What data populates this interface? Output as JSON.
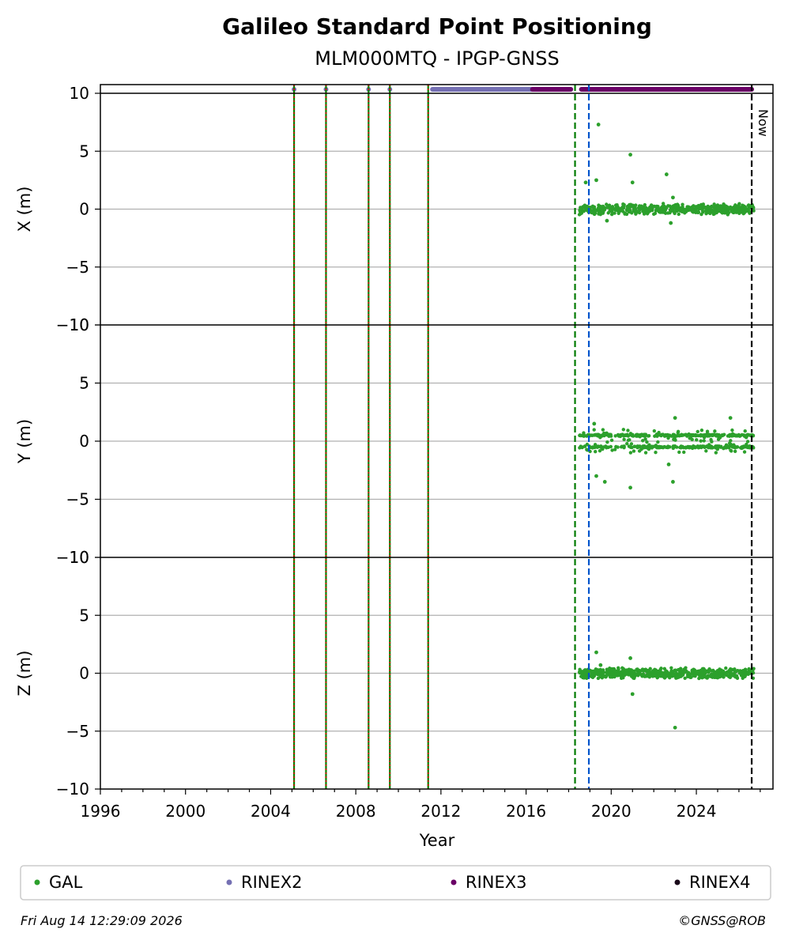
{
  "chart_data": {
    "type": "scatter",
    "title": "Galileo Standard Point Positioning",
    "subtitle": "MLM000MTQ - IPGP-GNSS",
    "xlabel": "Year",
    "xlim": [
      1996,
      2027.6
    ],
    "x_ticks": [
      "1996",
      "2000",
      "2004",
      "2008",
      "2012",
      "2016",
      "2020",
      "2024"
    ],
    "grid": true,
    "panels": [
      {
        "ylabel": "X (m)",
        "ylim": [
          -10,
          10
        ],
        "y_ticks": [
          "10",
          "5",
          "0",
          "−5",
          "−10"
        ]
      },
      {
        "ylabel": "Y (m)",
        "ylim": [
          -10,
          10
        ],
        "y_ticks": [
          "10",
          "5",
          "0",
          "−5",
          "−10"
        ]
      },
      {
        "ylabel": "Z (m)",
        "ylim": [
          -10,
          10
        ],
        "y_ticks": [
          "10",
          "5",
          "0",
          "−5",
          "−10"
        ]
      }
    ],
    "series": [
      {
        "name": "GAL",
        "color": "#2ca02c",
        "x_range": [
          2018.5,
          2026.7
        ],
        "outliers": {
          "X": [
            [
              2018.8,
              2.3
            ],
            [
              2019.3,
              2.5
            ],
            [
              2019.4,
              7.3
            ],
            [
              2020.9,
              4.7
            ],
            [
              2021.0,
              2.3
            ],
            [
              2022.6,
              3.0
            ],
            [
              2022.9,
              1.0
            ],
            [
              2019.8,
              -1.0
            ],
            [
              2022.8,
              -1.2
            ]
          ],
          "Y": [
            [
              2019.3,
              -3.0
            ],
            [
              2019.7,
              -3.5
            ],
            [
              2020.9,
              -4.0
            ],
            [
              2022.7,
              -2.0
            ],
            [
              2022.9,
              -3.5
            ],
            [
              2023.0,
              2.0
            ],
            [
              2025.6,
              2.0
            ],
            [
              2019.2,
              1.5
            ]
          ],
          "Z": [
            [
              2019.3,
              1.8
            ],
            [
              2020.9,
              1.3
            ],
            [
              2021.0,
              -1.8
            ],
            [
              2023.0,
              -4.7
            ],
            [
              2019.5,
              0.7
            ]
          ]
        }
      },
      {
        "name": "RINEX2",
        "color": "#7570b3",
        "segments": [
          [
            2011.6,
            2018.1
          ]
        ],
        "points": [
          2005.1,
          2006.6,
          2008.6,
          2009.6
        ]
      },
      {
        "name": "RINEX3",
        "color": "#6a0066",
        "segments": [
          [
            2016.3,
            2018.1
          ],
          [
            2018.6,
            2026.6
          ]
        ]
      },
      {
        "name": "RINEX4",
        "color": "#1a0a1a",
        "segments": []
      }
    ],
    "vertical_lines": [
      {
        "x": 2005.1,
        "style": "green-red-dotted"
      },
      {
        "x": 2006.6,
        "style": "green-red-dotted"
      },
      {
        "x": 2008.6,
        "style": "green-red-dotted"
      },
      {
        "x": 2009.6,
        "style": "green-red-dotted"
      },
      {
        "x": 2011.4,
        "style": "green-red-dotted"
      },
      {
        "x": 2018.3,
        "style": "green-dashed"
      },
      {
        "x": 2018.95,
        "style": "blue-dashed"
      },
      {
        "x": 2026.6,
        "style": "black-dashed"
      }
    ],
    "annotations": [
      "Now"
    ],
    "legend": {
      "placement": "bottom",
      "entries": [
        "GAL",
        "RINEX2",
        "RINEX3",
        "RINEX4"
      ]
    }
  },
  "footer": {
    "timestamp": "Fri Aug 14 12:29:09 2026",
    "credit": "©GNSS@ROB"
  }
}
